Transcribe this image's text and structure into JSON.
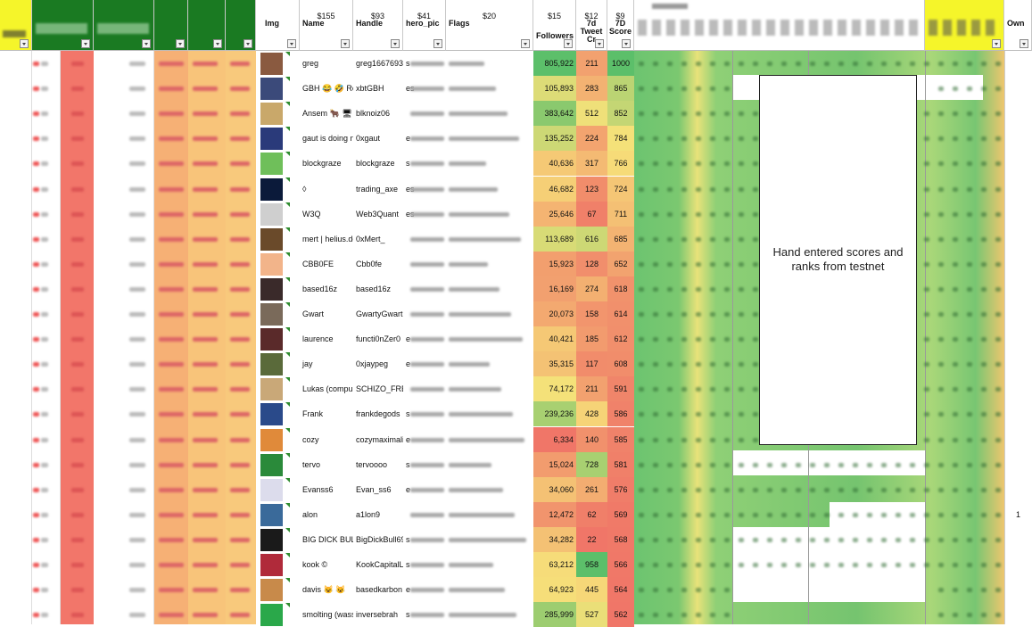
{
  "headers": {
    "img": {
      "label": "Img"
    },
    "name": {
      "price": "$155",
      "label": "Name"
    },
    "handle": {
      "price": "$93",
      "label": "Handle"
    },
    "hero_pic": {
      "price": "$41",
      "label": "hero_pic"
    },
    "flags": {
      "price": "$20",
      "label": "Flags"
    },
    "followers": {
      "price": "$15",
      "label": "Followers"
    },
    "tweet_cr": {
      "price": "$12",
      "label": "7d\nTweet\nCr"
    },
    "score": {
      "price": "$9",
      "label": "7D\nScore"
    },
    "own": {
      "label": "Own"
    }
  },
  "overlay_note": "Hand entered scores and ranks from testnet",
  "colors": {
    "green_header": "#1a7a22",
    "yellow_header": "#f5f52a",
    "red_col": "#f2766a",
    "heat_high": "#5cbf6a",
    "heat_mid": "#f7e27a",
    "heat_low": "#f07668"
  },
  "rows": [
    {
      "name": "greg",
      "handle": "greg16676935",
      "hero": "s",
      "followers": "805,922",
      "tweet": "211",
      "score": "1000",
      "own": ""
    },
    {
      "name": "GBH 😂 🤣 Ren",
      "handle": "xbtGBH",
      "hero": "es",
      "followers": "105,893",
      "tweet": "283",
      "score": "865",
      "own": ""
    },
    {
      "name": "Ansem 🐂 🖥",
      "handle": "blknoiz06",
      "hero": "",
      "followers": "383,642",
      "tweet": "512",
      "score": "852",
      "own": ""
    },
    {
      "name": "gaut is doing nc",
      "handle": "0xgaut",
      "hero": "e",
      "followers": "135,252",
      "tweet": "224",
      "score": "784",
      "own": ""
    },
    {
      "name": "blockgraze",
      "handle": "blockgraze",
      "hero": "s",
      "followers": "40,636",
      "tweet": "317",
      "score": "766",
      "own": ""
    },
    {
      "name": "◊",
      "handle": "trading_axe",
      "hero": "es",
      "followers": "46,682",
      "tweet": "123",
      "score": "724",
      "own": ""
    },
    {
      "name": "W3Q",
      "handle": "Web3Quant",
      "hero": "es",
      "followers": "25,646",
      "tweet": "67",
      "score": "711",
      "own": ""
    },
    {
      "name": "mert | helius.de",
      "handle": "0xMert_",
      "hero": "",
      "followers": "113,689",
      "tweet": "616",
      "score": "685",
      "own": ""
    },
    {
      "name": "CBB0FE",
      "handle": "Cbb0fe",
      "hero": "",
      "followers": "15,923",
      "tweet": "128",
      "score": "652",
      "own": ""
    },
    {
      "name": "based16z",
      "handle": "based16z",
      "hero": "",
      "followers": "16,169",
      "tweet": "274",
      "score": "618",
      "own": ""
    },
    {
      "name": "Gwart",
      "handle": "GwartyGwart",
      "hero": "",
      "followers": "20,073",
      "tweet": "158",
      "score": "614",
      "own": ""
    },
    {
      "name": "laurence",
      "handle": "functi0nZer0",
      "hero": "e",
      "followers": "40,421",
      "tweet": "185",
      "score": "612",
      "own": ""
    },
    {
      "name": "jay",
      "handle": "0xjaypeg",
      "hero": "e",
      "followers": "35,315",
      "tweet": "117",
      "score": "608",
      "own": ""
    },
    {
      "name": "Lukas (compun",
      "handle": "SCHIZO_FREQ",
      "hero": "",
      "followers": "74,172",
      "tweet": "211",
      "score": "591",
      "own": ""
    },
    {
      "name": "Frank",
      "handle": "frankdegods",
      "hero": "s",
      "followers": "239,236",
      "tweet": "428",
      "score": "586",
      "own": ""
    },
    {
      "name": "cozy",
      "handle": "cozymaximalis",
      "hero": "e",
      "followers": "6,334",
      "tweet": "140",
      "score": "585",
      "own": ""
    },
    {
      "name": "tervo",
      "handle": "tervoooo",
      "hero": "s",
      "followers": "15,024",
      "tweet": "728",
      "score": "581",
      "own": ""
    },
    {
      "name": "Evanss6",
      "handle": "Evan_ss6",
      "hero": "e",
      "followers": "34,060",
      "tweet": "261",
      "score": "576",
      "own": ""
    },
    {
      "name": "alon",
      "handle": "a1lon9",
      "hero": "",
      "followers": "12,472",
      "tweet": "62",
      "score": "569",
      "own": "1"
    },
    {
      "name": "BIG DICK BULL",
      "handle": "BigDickBull69",
      "hero": "s",
      "followers": "34,282",
      "tweet": "22",
      "score": "568",
      "own": ""
    },
    {
      "name": "kook ©",
      "handle": "KookCapitalLL",
      "hero": "s",
      "followers": "63,212",
      "tweet": "958",
      "score": "566",
      "own": ""
    },
    {
      "name": "davis 😺 😺",
      "handle": "basedkarbon",
      "hero": "e",
      "followers": "64,923",
      "tweet": "445",
      "score": "564",
      "own": ""
    },
    {
      "name": "smolting (wassi",
      "handle": "inversebrah",
      "hero": "s",
      "followers": "285,999",
      "tweet": "527",
      "score": "562",
      "own": ""
    }
  ]
}
